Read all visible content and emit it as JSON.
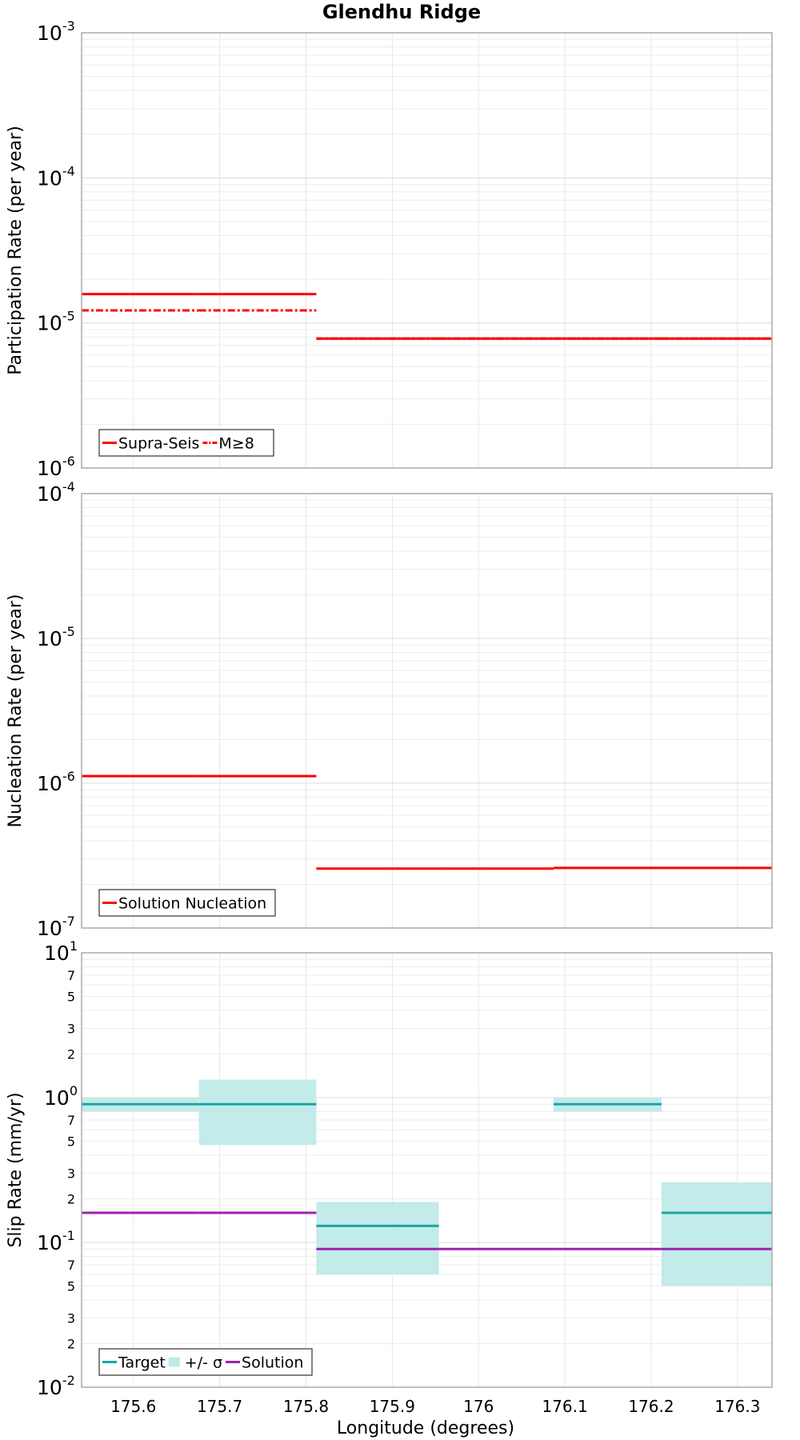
{
  "chart_data": [
    {
      "type": "line",
      "title": "Glendhu Ridge",
      "ylabel": "Participation Rate (per year)",
      "xlabel": "",
      "yscale": "log",
      "ylim": [
        1e-06,
        0.001
      ],
      "xlim": [
        175.54,
        176.34
      ],
      "grid": true,
      "legend_position": "bottom-left",
      "series": [
        {
          "name": "Supra-Seis",
          "color": "#ff0000",
          "style": "solid",
          "segments": [
            {
              "x0": 175.54,
              "x1": 175.676,
              "y": 1.58e-05
            },
            {
              "x0": 175.676,
              "x1": 175.812,
              "y": 1.58e-05
            },
            {
              "x0": 175.812,
              "x1": 175.954,
              "y": 7.8e-06
            },
            {
              "x0": 175.954,
              "x1": 176.087,
              "y": 7.8e-06
            },
            {
              "x0": 176.087,
              "x1": 176.212,
              "y": 7.8e-06
            },
            {
              "x0": 176.212,
              "x1": 176.34,
              "y": 7.8e-06
            }
          ]
        },
        {
          "name": "M≥8",
          "color": "#ff0000",
          "style": "dashdot",
          "segments": [
            {
              "x0": 175.54,
              "x1": 175.676,
              "y": 1.22e-05
            },
            {
              "x0": 175.676,
              "x1": 175.812,
              "y": 1.22e-05
            },
            {
              "x0": 175.812,
              "x1": 175.954,
              "y": 7.8e-06
            },
            {
              "x0": 175.954,
              "x1": 176.087,
              "y": 7.8e-06
            },
            {
              "x0": 176.087,
              "x1": 176.212,
              "y": 7.8e-06
            },
            {
              "x0": 176.212,
              "x1": 176.34,
              "y": 7.8e-06
            }
          ]
        }
      ],
      "ticks": {
        "major": [
          "10^-3",
          "10^-4",
          "10^-5",
          "10^-6"
        ]
      }
    },
    {
      "type": "line",
      "title": "",
      "ylabel": "Nucleation Rate (per year)",
      "xlabel": "",
      "yscale": "log",
      "ylim": [
        1e-07,
        0.0001
      ],
      "xlim": [
        175.54,
        176.34
      ],
      "grid": true,
      "legend_position": "bottom-left",
      "series": [
        {
          "name": "Solution Nucleation",
          "color": "#ff0000",
          "style": "solid",
          "segments": [
            {
              "x0": 175.54,
              "x1": 175.676,
              "y": 1.12e-06
            },
            {
              "x0": 175.676,
              "x1": 175.812,
              "y": 1.12e-06
            },
            {
              "x0": 175.812,
              "x1": 175.954,
              "y": 2.57e-07
            },
            {
              "x0": 175.954,
              "x1": 176.087,
              "y": 2.57e-07
            },
            {
              "x0": 176.087,
              "x1": 176.212,
              "y": 2.6e-07
            },
            {
              "x0": 176.212,
              "x1": 176.34,
              "y": 2.6e-07
            }
          ]
        }
      ],
      "ticks": {
        "major": [
          "10^-4",
          "10^-5",
          "10^-6",
          "10^-7"
        ]
      }
    },
    {
      "type": "line",
      "title": "",
      "ylabel": "Slip Rate (mm/yr)",
      "xlabel": "Longitude (degrees)",
      "yscale": "log",
      "ylim": [
        0.01,
        10
      ],
      "xlim": [
        175.54,
        176.34
      ],
      "grid": true,
      "legend_position": "bottom-left",
      "x_ticks": [
        "175.6",
        "175.7",
        "175.8",
        "175.9",
        "176",
        "176.1",
        "176.2",
        "176.3"
      ],
      "minor_tick_labels": [
        "7",
        "5",
        "3",
        "2"
      ],
      "series": [
        {
          "name": "Target",
          "color": "#1aa7a2",
          "style": "solid",
          "segments": [
            {
              "x0": 175.54,
              "x1": 175.676,
              "y": 0.9
            },
            {
              "x0": 175.676,
              "x1": 175.812,
              "y": 0.9
            },
            {
              "x0": 175.812,
              "x1": 175.954,
              "y": 0.13
            },
            {
              "x0": 176.087,
              "x1": 176.212,
              "y": 0.9
            },
            {
              "x0": 176.212,
              "x1": 176.34,
              "y": 0.16
            }
          ]
        },
        {
          "name": "+/- σ",
          "color": "#bfeae8",
          "style": "band",
          "segments": [
            {
              "x0": 175.54,
              "x1": 175.676,
              "lo": 0.8,
              "hi": 1.0
            },
            {
              "x0": 175.676,
              "x1": 175.812,
              "lo": 0.47,
              "hi": 1.33
            },
            {
              "x0": 175.812,
              "x1": 175.954,
              "lo": 0.06,
              "hi": 0.19
            },
            {
              "x0": 176.087,
              "x1": 176.212,
              "lo": 0.8,
              "hi": 1.0
            },
            {
              "x0": 176.212,
              "x1": 176.34,
              "lo": 0.05,
              "hi": 0.26
            }
          ]
        },
        {
          "name": "Solution",
          "color": "#a020b0",
          "style": "solid",
          "segments": [
            {
              "x0": 175.54,
              "x1": 175.676,
              "y": 0.16
            },
            {
              "x0": 175.676,
              "x1": 175.812,
              "y": 0.16
            },
            {
              "x0": 175.812,
              "x1": 175.954,
              "y": 0.09
            },
            {
              "x0": 175.954,
              "x1": 176.087,
              "y": 0.09
            },
            {
              "x0": 176.087,
              "x1": 176.212,
              "y": 0.09
            },
            {
              "x0": 176.212,
              "x1": 176.34,
              "y": 0.09
            }
          ]
        }
      ],
      "ticks": {
        "major": [
          "10^1",
          "10^0",
          "10^-1",
          "10^-2"
        ]
      }
    }
  ]
}
